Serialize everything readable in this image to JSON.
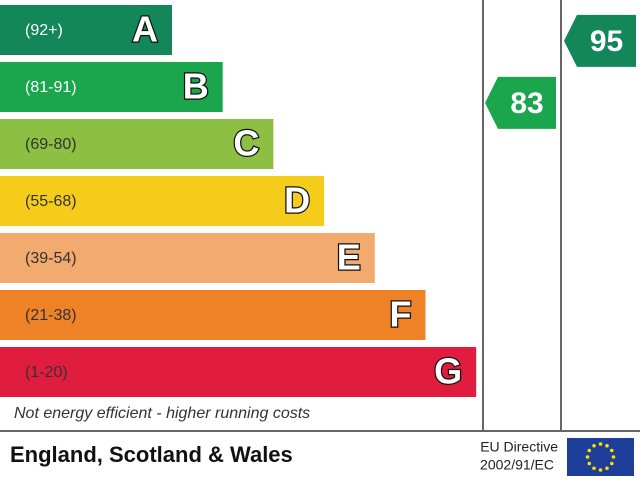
{
  "chart_data": {
    "type": "epc",
    "bands": [
      {
        "range": "(92+)",
        "letter": "A",
        "color": "#13875a"
      },
      {
        "range": "(81-91)",
        "letter": "B",
        "color": "#1ba64e"
      },
      {
        "range": "(69-80)",
        "letter": "C",
        "color": "#8dbf42"
      },
      {
        "range": "(55-68)",
        "letter": "D",
        "color": "#f5cc1a"
      },
      {
        "range": "(39-54)",
        "letter": "E",
        "color": "#f2aa6e"
      },
      {
        "range": "(21-38)",
        "letter": "F",
        "color": "#ef8227"
      },
      {
        "range": "(1-20)",
        "letter": "G",
        "color": "#e11d3f"
      }
    ],
    "current": {
      "value": 83,
      "color": "#1ba64e"
    },
    "potential": {
      "value": 95,
      "color": "#13875a"
    },
    "bottom_note": "Not energy efficient - higher running costs",
    "region": "England, Scotland & Wales",
    "directive": [
      "EU Directive",
      "2002/91/EC"
    ]
  }
}
